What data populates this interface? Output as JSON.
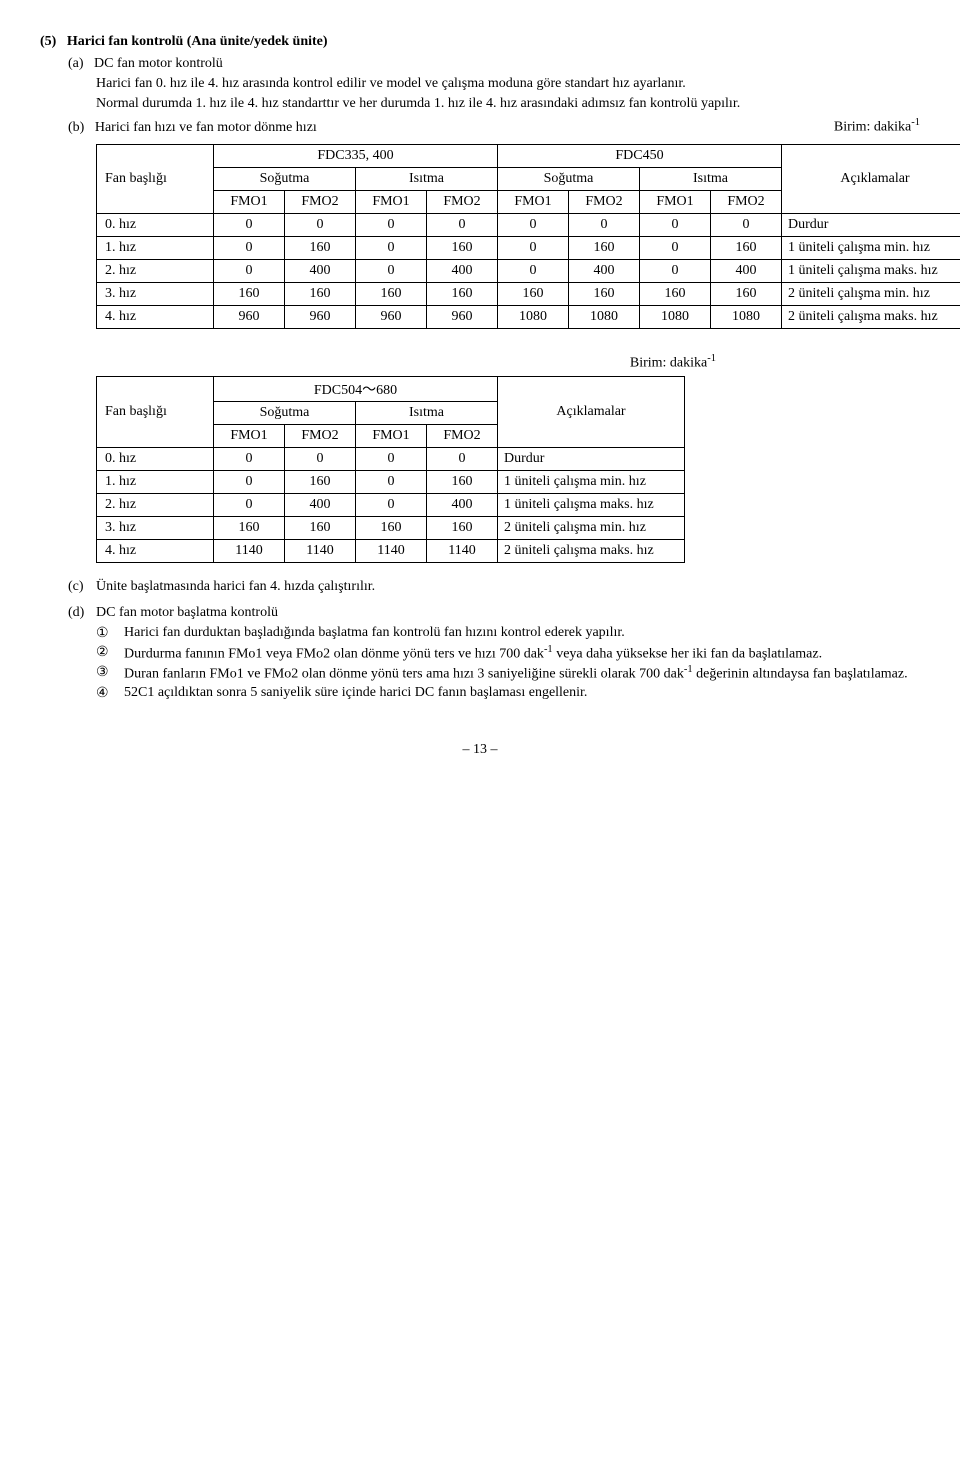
{
  "section": {
    "number": "(5)",
    "title": "Harici fan kontrolü (Ana ünite/yedek ünite)",
    "a": {
      "marker": "(a)",
      "label": "DC fan motor kontrolü",
      "p1": "Harici fan 0. hız ile 4. hız arasında kontrol edilir ve model ve çalışma moduna göre standart hız ayarlanır.",
      "p2": "Normal durumda 1. hız ile 4. hız standarttır ve her durumda 1. hız ile 4. hız arasındaki adımsız fan kontrolü yapılır."
    },
    "b": {
      "marker": "(b)",
      "label": "Harici fan hızı ve fan motor dönme hızı",
      "unit": "Birim: dakika",
      "unit_sup": "-1"
    }
  },
  "table1": {
    "fan_head": "Fan başlığı",
    "group1": "FDC335, 400",
    "group2": "FDC450",
    "cool": "Soğutma",
    "heat": "Isıtma",
    "remarks": "Açıklamalar",
    "fmo1": "FMO1",
    "fmo2": "FMO2",
    "rows": [
      {
        "label": "0. hız",
        "v": [
          "0",
          "0",
          "0",
          "0",
          "0",
          "0",
          "0",
          "0"
        ],
        "remark": "Durdur"
      },
      {
        "label": "1. hız",
        "v": [
          "0",
          "160",
          "0",
          "160",
          "0",
          "160",
          "0",
          "160"
        ],
        "remark": "1 üniteli çalışma min. hız"
      },
      {
        "label": "2. hız",
        "v": [
          "0",
          "400",
          "0",
          "400",
          "0",
          "400",
          "0",
          "400"
        ],
        "remark": "1 üniteli çalışma maks. hız"
      },
      {
        "label": "3. hız",
        "v": [
          "160",
          "160",
          "160",
          "160",
          "160",
          "160",
          "160",
          "160"
        ],
        "remark": "2 üniteli çalışma min. hız"
      },
      {
        "label": "4. hız",
        "v": [
          "960",
          "960",
          "960",
          "960",
          "1080",
          "1080",
          "1080",
          "1080"
        ],
        "remark": "2 üniteli çalışma maks. hız"
      }
    ]
  },
  "table2": {
    "unit": "Birim: dakika",
    "unit_sup": "-1",
    "fan_head": "Fan başlığı",
    "group": "FDC504～680",
    "cool": "Soğutma",
    "heat": "Isıtma",
    "remarks": "Açıklamalar",
    "fmo1": "FMO1",
    "fmo2": "FMO2",
    "rows": [
      {
        "label": "0. hız",
        "v": [
          "0",
          "0",
          "0",
          "0"
        ],
        "remark": "Durdur"
      },
      {
        "label": "1. hız",
        "v": [
          "0",
          "160",
          "0",
          "160"
        ],
        "remark": "1 üniteli çalışma min. hız"
      },
      {
        "label": "2. hız",
        "v": [
          "0",
          "400",
          "0",
          "400"
        ],
        "remark": "1 üniteli çalışma maks. hız"
      },
      {
        "label": "3. hız",
        "v": [
          "160",
          "160",
          "160",
          "160"
        ],
        "remark": "2 üniteli çalışma min. hız"
      },
      {
        "label": "4. hız",
        "v": [
          "1140",
          "1140",
          "1140",
          "1140"
        ],
        "remark": "2 üniteli çalışma maks. hız"
      }
    ]
  },
  "c": {
    "marker": "(c)",
    "text": "Ünite başlatmasında harici fan 4. hızda çalıştırılır."
  },
  "d": {
    "marker": "(d)",
    "label": "DC fan motor başlatma kontrolü",
    "items": {
      "i1": {
        "num": "①",
        "text_a": "Harici fan durduktan başladığında başlatma fan kontrolü fan hızını kontrol ederek yapılır."
      },
      "i2": {
        "num": "②",
        "text_a": "Durdurma fanının FMo1 veya FMo2 olan dönme yönü ters ve hızı 700 dak",
        "sup": "-1",
        "text_b": " veya daha yüksekse her iki fan da başlatılamaz."
      },
      "i3": {
        "num": "③",
        "text_a": "Duran fanların FMo1 ve FMo2 olan dönme yönü ters ama hızı 3 saniyeliğine sürekli olarak 700 dak",
        "sup": "-1",
        "text_b": " değerinin altındaysa fan başlatılamaz."
      },
      "i4": {
        "num": "④",
        "text_a": "52C1 açıldıktan sonra 5 saniyelik süre içinde harici DC fanın başlaması engellenir."
      }
    }
  },
  "page": "– 13 –"
}
